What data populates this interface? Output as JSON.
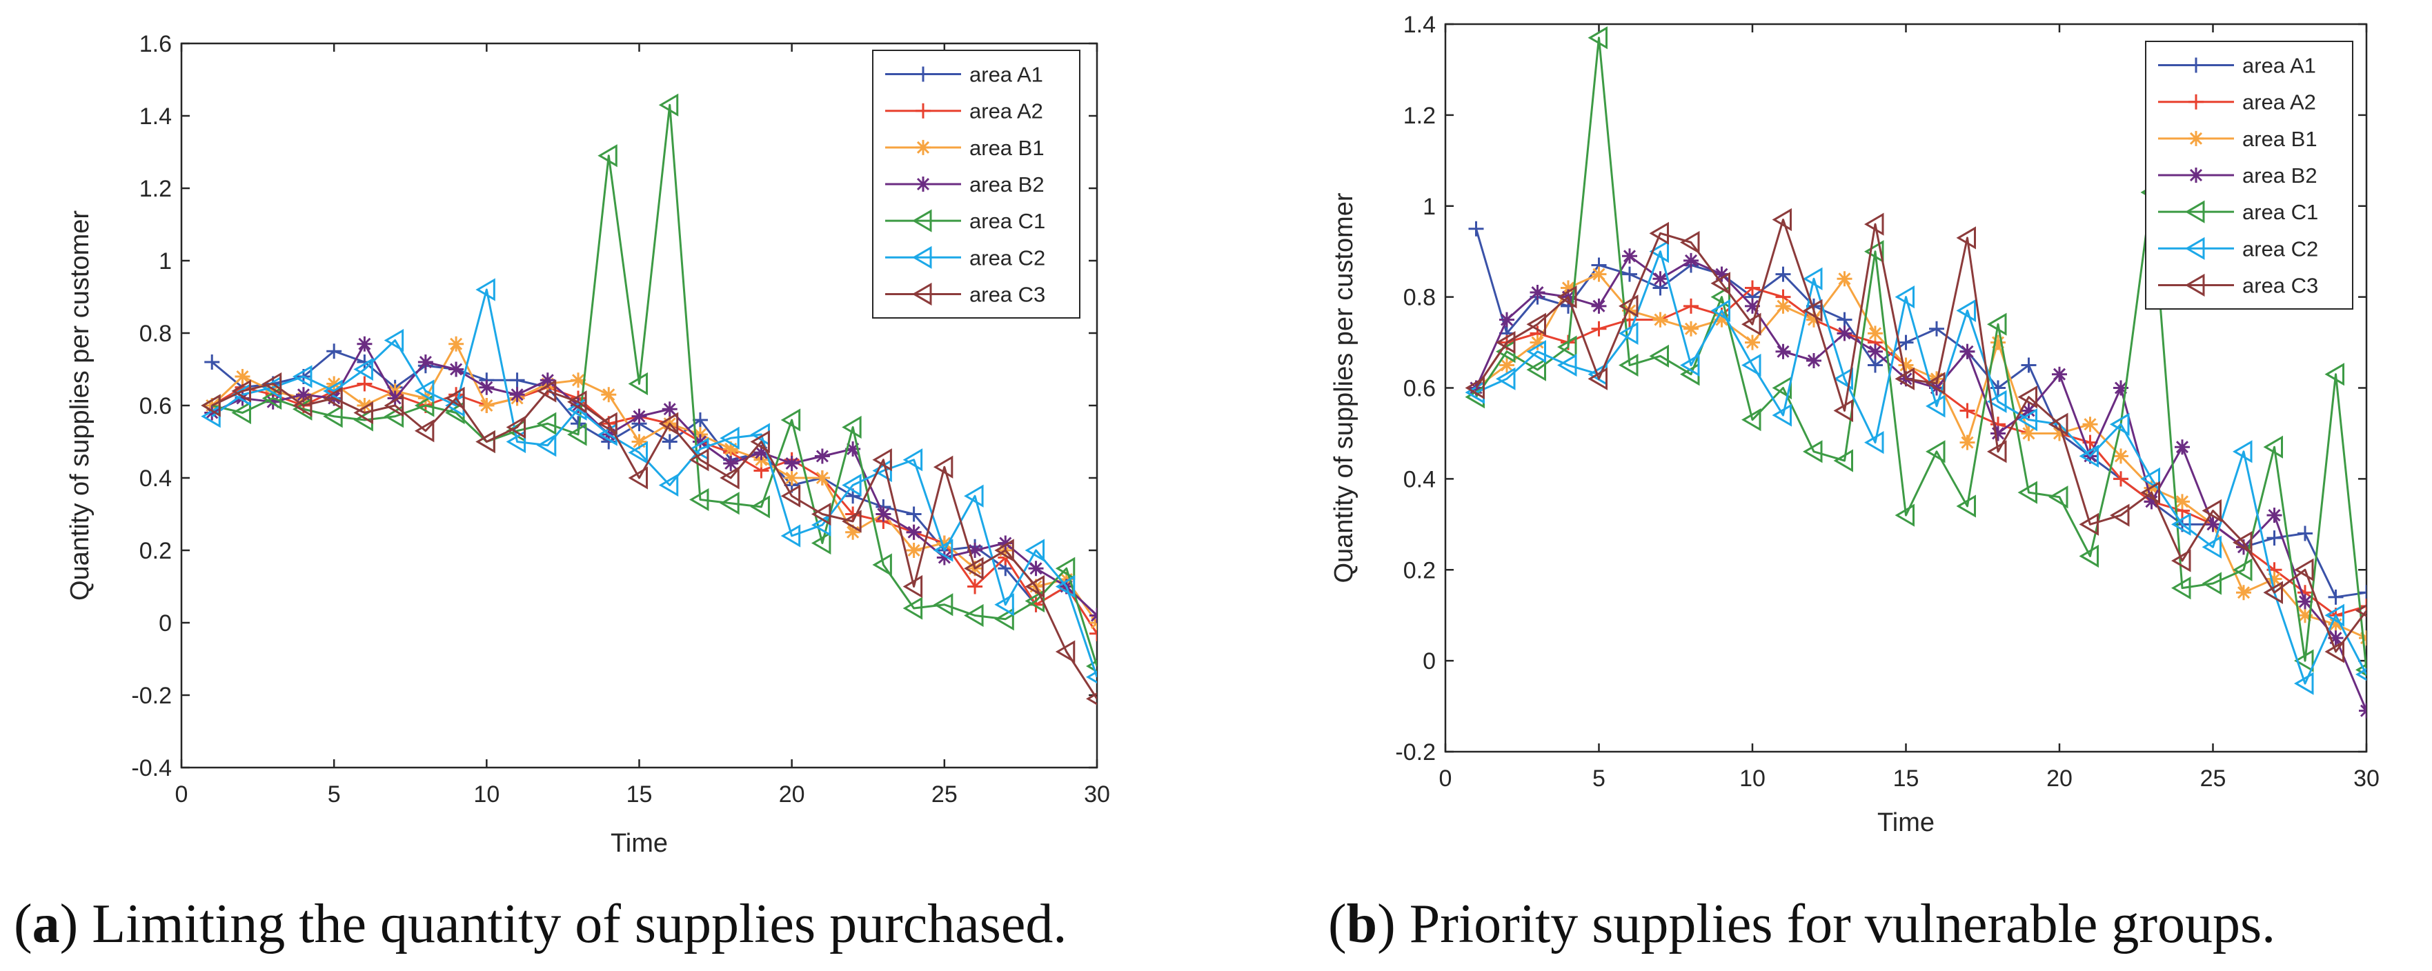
{
  "chart_data": [
    {
      "type": "line",
      "title": "",
      "xlabel": "Time",
      "ylabel": "Quantity of supplies per customer",
      "xlim": [
        0,
        30
      ],
      "ylim": [
        -0.4,
        1.6
      ],
      "xticks": [
        "0",
        "5",
        "10",
        "15",
        "20",
        "25",
        "30"
      ],
      "yticks": [
        "-0.4",
        "-0.2",
        "0",
        "0.2",
        "0.4",
        "0.6",
        "0.8",
        "1",
        "1.2",
        "1.4",
        "1.6"
      ],
      "legend_position": "top-right",
      "x": [
        1,
        2,
        3,
        4,
        5,
        6,
        7,
        8,
        9,
        10,
        11,
        12,
        13,
        14,
        15,
        16,
        17,
        18,
        19,
        20,
        21,
        22,
        23,
        24,
        25,
        26,
        27,
        28,
        29,
        30
      ],
      "series": [
        {
          "name": "area A1",
          "color": "#3a52a8",
          "marker": "plus",
          "values": [
            0.72,
            0.65,
            0.66,
            0.68,
            0.75,
            0.72,
            0.65,
            0.71,
            0.7,
            0.67,
            0.67,
            0.65,
            0.55,
            0.5,
            0.55,
            0.5,
            0.56,
            0.45,
            0.47,
            0.38,
            0.4,
            0.35,
            0.32,
            0.3,
            0.2,
            0.21,
            0.15,
            0.05,
            0.1,
            0.02
          ]
        },
        {
          "name": "area A2",
          "color": "#e8412f",
          "marker": "plus",
          "values": [
            0.6,
            0.65,
            0.63,
            0.6,
            0.64,
            0.66,
            0.63,
            0.6,
            0.63,
            0.6,
            0.62,
            0.65,
            0.62,
            0.55,
            0.57,
            0.55,
            0.5,
            0.47,
            0.42,
            0.45,
            0.4,
            0.3,
            0.28,
            0.25,
            0.22,
            0.1,
            0.18,
            0.05,
            0.1,
            -0.03
          ]
        },
        {
          "name": "area B1",
          "color": "#f7a440",
          "marker": "asterisk",
          "values": [
            0.6,
            0.68,
            0.64,
            0.62,
            0.66,
            0.6,
            0.64,
            0.62,
            0.77,
            0.6,
            0.62,
            0.66,
            0.67,
            0.63,
            0.5,
            0.55,
            0.52,
            0.48,
            0.45,
            0.4,
            0.4,
            0.25,
            0.3,
            0.2,
            0.22,
            0.15,
            0.2,
            0.1,
            0.12,
            0.0
          ]
        },
        {
          "name": "area B2",
          "color": "#6b2c82",
          "marker": "asterisk",
          "values": [
            0.58,
            0.62,
            0.61,
            0.63,
            0.62,
            0.77,
            0.62,
            0.72,
            0.7,
            0.65,
            0.63,
            0.67,
            0.6,
            0.52,
            0.57,
            0.59,
            0.5,
            0.44,
            0.47,
            0.44,
            0.46,
            0.48,
            0.3,
            0.25,
            0.18,
            0.2,
            0.22,
            0.15,
            0.1,
            0.02
          ]
        },
        {
          "name": "area C1",
          "color": "#3d9b45",
          "marker": "triangle-left",
          "values": [
            0.6,
            0.58,
            0.62,
            0.59,
            0.57,
            0.56,
            0.57,
            0.6,
            0.58,
            0.5,
            0.53,
            0.55,
            0.52,
            1.29,
            0.66,
            1.43,
            0.34,
            0.33,
            0.32,
            0.56,
            0.22,
            0.54,
            0.16,
            0.04,
            0.05,
            0.02,
            0.01,
            0.06,
            0.15,
            -0.12
          ]
        },
        {
          "name": "area C2",
          "color": "#1ca8e8",
          "marker": "triangle-left",
          "values": [
            0.57,
            0.63,
            0.65,
            0.68,
            0.64,
            0.7,
            0.78,
            0.64,
            0.6,
            0.92,
            0.5,
            0.49,
            0.59,
            0.52,
            0.47,
            0.38,
            0.48,
            0.51,
            0.52,
            0.24,
            0.27,
            0.38,
            0.42,
            0.45,
            0.2,
            0.35,
            0.05,
            0.2,
            0.1,
            -0.15
          ]
        },
        {
          "name": "area C3",
          "color": "#8c3b3b",
          "marker": "triangle-left",
          "values": [
            0.6,
            0.64,
            0.66,
            0.6,
            0.62,
            0.58,
            0.6,
            0.53,
            0.62,
            0.5,
            0.54,
            0.64,
            0.61,
            0.55,
            0.4,
            0.55,
            0.45,
            0.4,
            0.5,
            0.35,
            0.3,
            0.28,
            0.45,
            0.1,
            0.43,
            0.15,
            0.2,
            0.1,
            -0.08,
            -0.21
          ]
        }
      ]
    },
    {
      "type": "line",
      "title": "",
      "xlabel": "Time",
      "ylabel": "Quantity of supplies per customer",
      "xlim": [
        0,
        30
      ],
      "ylim": [
        -0.2,
        1.4
      ],
      "xticks": [
        "0",
        "5",
        "10",
        "15",
        "20",
        "25",
        "30"
      ],
      "yticks": [
        "-0.2",
        "0",
        "0.2",
        "0.4",
        "0.6",
        "0.8",
        "1",
        "1.2",
        "1.4"
      ],
      "legend_position": "top-right",
      "x": [
        1,
        2,
        3,
        4,
        5,
        6,
        7,
        8,
        9,
        10,
        11,
        12,
        13,
        14,
        15,
        16,
        17,
        18,
        19,
        20,
        21,
        22,
        23,
        24,
        25,
        26,
        27,
        28,
        29,
        30
      ],
      "series": [
        {
          "name": "area A1",
          "color": "#3a52a8",
          "marker": "plus",
          "values": [
            0.95,
            0.72,
            0.8,
            0.78,
            0.87,
            0.85,
            0.82,
            0.87,
            0.85,
            0.8,
            0.85,
            0.78,
            0.75,
            0.65,
            0.7,
            0.73,
            0.68,
            0.6,
            0.65,
            0.5,
            0.45,
            0.4,
            0.35,
            0.3,
            0.3,
            0.25,
            0.27,
            0.28,
            0.14,
            0.15
          ]
        },
        {
          "name": "area A2",
          "color": "#e8412f",
          "marker": "plus",
          "values": [
            0.6,
            0.7,
            0.72,
            0.7,
            0.73,
            0.75,
            0.75,
            0.78,
            0.76,
            0.82,
            0.8,
            0.75,
            0.72,
            0.7,
            0.65,
            0.6,
            0.55,
            0.52,
            0.5,
            0.5,
            0.48,
            0.4,
            0.35,
            0.33,
            0.3,
            0.25,
            0.2,
            0.15,
            0.1,
            0.12
          ]
        },
        {
          "name": "area B1",
          "color": "#f7a440",
          "marker": "asterisk",
          "values": [
            0.6,
            0.65,
            0.7,
            0.82,
            0.85,
            0.77,
            0.75,
            0.73,
            0.75,
            0.7,
            0.78,
            0.75,
            0.84,
            0.72,
            0.65,
            0.62,
            0.48,
            0.7,
            0.5,
            0.5,
            0.52,
            0.45,
            0.38,
            0.35,
            0.3,
            0.15,
            0.18,
            0.1,
            0.08,
            0.05
          ]
        },
        {
          "name": "area B2",
          "color": "#6b2c82",
          "marker": "asterisk",
          "values": [
            0.6,
            0.75,
            0.81,
            0.8,
            0.78,
            0.89,
            0.84,
            0.88,
            0.85,
            0.78,
            0.68,
            0.66,
            0.72,
            0.68,
            0.62,
            0.6,
            0.68,
            0.5,
            0.55,
            0.63,
            0.45,
            0.6,
            0.35,
            0.47,
            0.3,
            0.25,
            0.32,
            0.13,
            0.05,
            -0.11
          ]
        },
        {
          "name": "area C1",
          "color": "#3d9b45",
          "marker": "triangle-left",
          "values": [
            0.58,
            0.68,
            0.64,
            0.69,
            1.37,
            0.65,
            0.67,
            0.63,
            0.8,
            0.53,
            0.6,
            0.46,
            0.44,
            0.9,
            0.32,
            0.46,
            0.34,
            0.74,
            0.37,
            0.36,
            0.23,
            0.52,
            1.03,
            0.16,
            0.17,
            0.2,
            0.47,
            0.0,
            0.63,
            -0.02
          ]
        },
        {
          "name": "area C2",
          "color": "#1ca8e8",
          "marker": "triangle-left",
          "values": [
            0.59,
            0.62,
            0.68,
            0.65,
            0.63,
            0.72,
            0.9,
            0.65,
            0.77,
            0.65,
            0.54,
            0.84,
            0.62,
            0.48,
            0.8,
            0.56,
            0.77,
            0.57,
            0.53,
            0.52,
            0.45,
            0.52,
            0.4,
            0.3,
            0.25,
            0.46,
            0.15,
            -0.05,
            0.1,
            -0.03
          ]
        },
        {
          "name": "area C3",
          "color": "#8c3b3b",
          "marker": "triangle-left",
          "values": [
            0.6,
            0.7,
            0.74,
            0.8,
            0.62,
            0.78,
            0.94,
            0.92,
            0.83,
            0.74,
            0.97,
            0.77,
            0.55,
            0.96,
            0.62,
            0.61,
            0.93,
            0.46,
            0.58,
            0.52,
            0.3,
            0.32,
            0.37,
            0.22,
            0.33,
            0.26,
            0.15,
            0.2,
            0.02,
            0.11
          ]
        }
      ]
    }
  ],
  "captions": [
    {
      "label": "a",
      "open": "(",
      "close": ")",
      "text": " Limiting the quantity of supplies purchased."
    },
    {
      "label": "b",
      "open": "(",
      "close": ")",
      "text": " Priority supplies for vulnerable groups."
    }
  ]
}
